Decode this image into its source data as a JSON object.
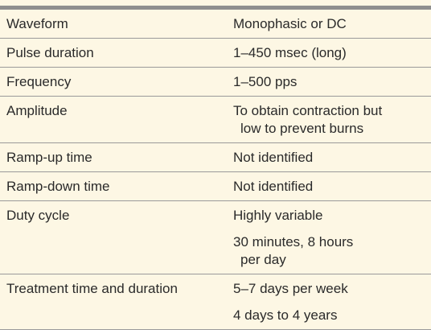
{
  "table": {
    "rows": [
      {
        "label": "Waveform",
        "entries": [
          [
            "Monophasic or DC"
          ]
        ]
      },
      {
        "label": "Pulse duration",
        "entries": [
          [
            "1–450 msec (long)"
          ]
        ]
      },
      {
        "label": "Frequency",
        "entries": [
          [
            "1–500 pps"
          ]
        ]
      },
      {
        "label": "Amplitude",
        "entries": [
          [
            "To obtain contraction but",
            "low to prevent burns"
          ]
        ]
      },
      {
        "label": "Ramp-up time",
        "entries": [
          [
            "Not identified"
          ]
        ]
      },
      {
        "label": "Ramp-down time",
        "entries": [
          [
            "Not identified"
          ]
        ]
      },
      {
        "label": "Duty cycle",
        "entries": [
          [
            "Highly variable"
          ],
          [
            "30 minutes, 8 hours",
            "per day"
          ]
        ]
      },
      {
        "label": "Treatment time and duration",
        "entries": [
          [
            "5–7 days per week"
          ],
          [
            "4 days to 4 years"
          ]
        ]
      }
    ]
  }
}
